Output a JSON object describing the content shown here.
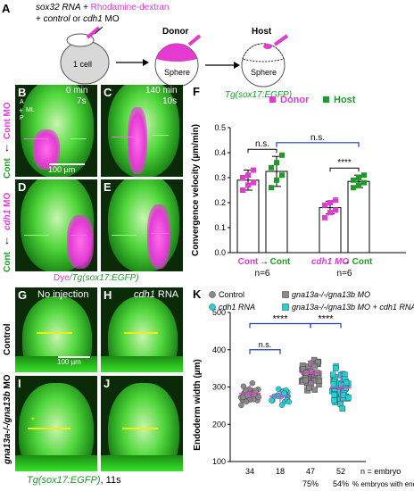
{
  "panel_letters": {
    "A": "A",
    "B": "B",
    "C": "C",
    "D": "D",
    "E": "E",
    "F": "F",
    "G": "G",
    "H": "H",
    "I": "I",
    "J": "J",
    "K": "K"
  },
  "panelA": {
    "line1_prefix": "sox32 RNA + ",
    "line1_dye": "Rhodamine-dextran",
    "line2_prefix": "+ ",
    "line2_control": "control",
    "line2_mid": " or ",
    "line2_mo": "cdh1",
    "line2_suffix": " MO",
    "one_cell": "1 cell",
    "donor": "Donor",
    "host": "Host",
    "sphere_donor": "Sphere",
    "sphere_host": "Sphere",
    "host_line": "Tg(sox17:EGFP)"
  },
  "panelsBE": {
    "timeB": "0 min",
    "stageB": "7s",
    "timeC": "140 min",
    "stageC": "10s",
    "orient_A": "A",
    "orient_ML": "ML",
    "orient_P": "P",
    "scale": "100 µm",
    "row1_top": "Cont MO",
    "row1_bottom": "Cont",
    "row2_mo": "cdh1",
    "row2_mo_suffix": " MO",
    "row2_bottom": "Cont",
    "caption_dye": "Dye",
    "caption_rest": "/Tg(sox17:EGFP)"
  },
  "panelsGJ": {
    "G_title": "No injection",
    "H_title": "cdh1",
    "H_title_suffix": " RNA",
    "scale": "100 µm",
    "row1": "Control",
    "row2_gene": "gna13a",
    "row2_rest": "-/-/gna13b",
    "row2_mo": " MO",
    "caption": "Tg(sox17:EGFP)",
    "caption_stage": ", 11s"
  },
  "colors": {
    "donor": "#e33ad2",
    "host": "#1f9a2a",
    "cyan": "#22d3d3",
    "grey": "#8a8a8a",
    "bracket": "#1f3fbf"
  },
  "chart_data": [
    {
      "type": "bar",
      "ylabel": "Convergence velocity (µm/min)",
      "ylim": [
        0,
        0.5
      ],
      "yticks": [
        "0.0",
        "0.1",
        "0.2",
        "0.3",
        "0.4",
        "0.5"
      ],
      "legend": [
        "Donor",
        "Host"
      ],
      "groups": [
        {
          "donor_label": "Cont",
          "host_label": "Cont",
          "n": "n=6",
          "donor_mean": 0.29,
          "host_mean": 0.325,
          "donor_sd": 0.04,
          "host_sd": 0.06,
          "donor_points": [
            0.25,
            0.27,
            0.28,
            0.3,
            0.31,
            0.33
          ],
          "host_points": [
            0.26,
            0.29,
            0.31,
            0.34,
            0.36,
            0.39
          ]
        },
        {
          "donor_label": "cdh1 MO",
          "host_label": "Cont",
          "n": "n=6",
          "donor_mean": 0.18,
          "host_mean": 0.285,
          "donor_sd": 0.025,
          "host_sd": 0.025,
          "donor_points": [
            0.14,
            0.16,
            0.17,
            0.19,
            0.2,
            0.21
          ],
          "host_points": [
            0.26,
            0.27,
            0.28,
            0.29,
            0.3,
            0.31
          ]
        }
      ],
      "annotations": {
        "within1": "n.s.",
        "within2": "****",
        "between": "n.s."
      }
    },
    {
      "type": "scatter",
      "ylabel": "Endoderm width (µm)",
      "ylim": [
        100,
        500
      ],
      "yticks": [
        "100",
        "200",
        "300",
        "400",
        "500"
      ],
      "legend": [
        "Control",
        "gna13a-/-/gna13b MO",
        "cdh1 RNA",
        "gna13a-/-/gna13b MO + cdh1 RNA"
      ],
      "groups": [
        {
          "name": "Control",
          "mean": 283,
          "sd": 22,
          "n": "34",
          "holes": "",
          "color": "#8a8a8a",
          "shape": "circle"
        },
        {
          "name": "cdh1 RNA",
          "mean": 275,
          "sd": 20,
          "n": "18",
          "holes": "",
          "color": "#22d3d3",
          "shape": "circle"
        },
        {
          "name": "gna13a-/-/gna13b MO",
          "mean": 338,
          "sd": 35,
          "n": "47",
          "holes": "75%",
          "color": "#8a8a8a",
          "shape": "square"
        },
        {
          "name": "gna13a-/-/gna13b MO + cdh1 RNA",
          "mean": 298,
          "sd": 40,
          "n": "52",
          "holes": "54%",
          "color": "#22d3d3",
          "shape": "square"
        }
      ],
      "n_label": "n = embryo",
      "holes_label": "% embryos with endoderm holes",
      "annotations": {
        "c1": "****",
        "c2": "n.s.",
        "c3": "****"
      }
    }
  ]
}
